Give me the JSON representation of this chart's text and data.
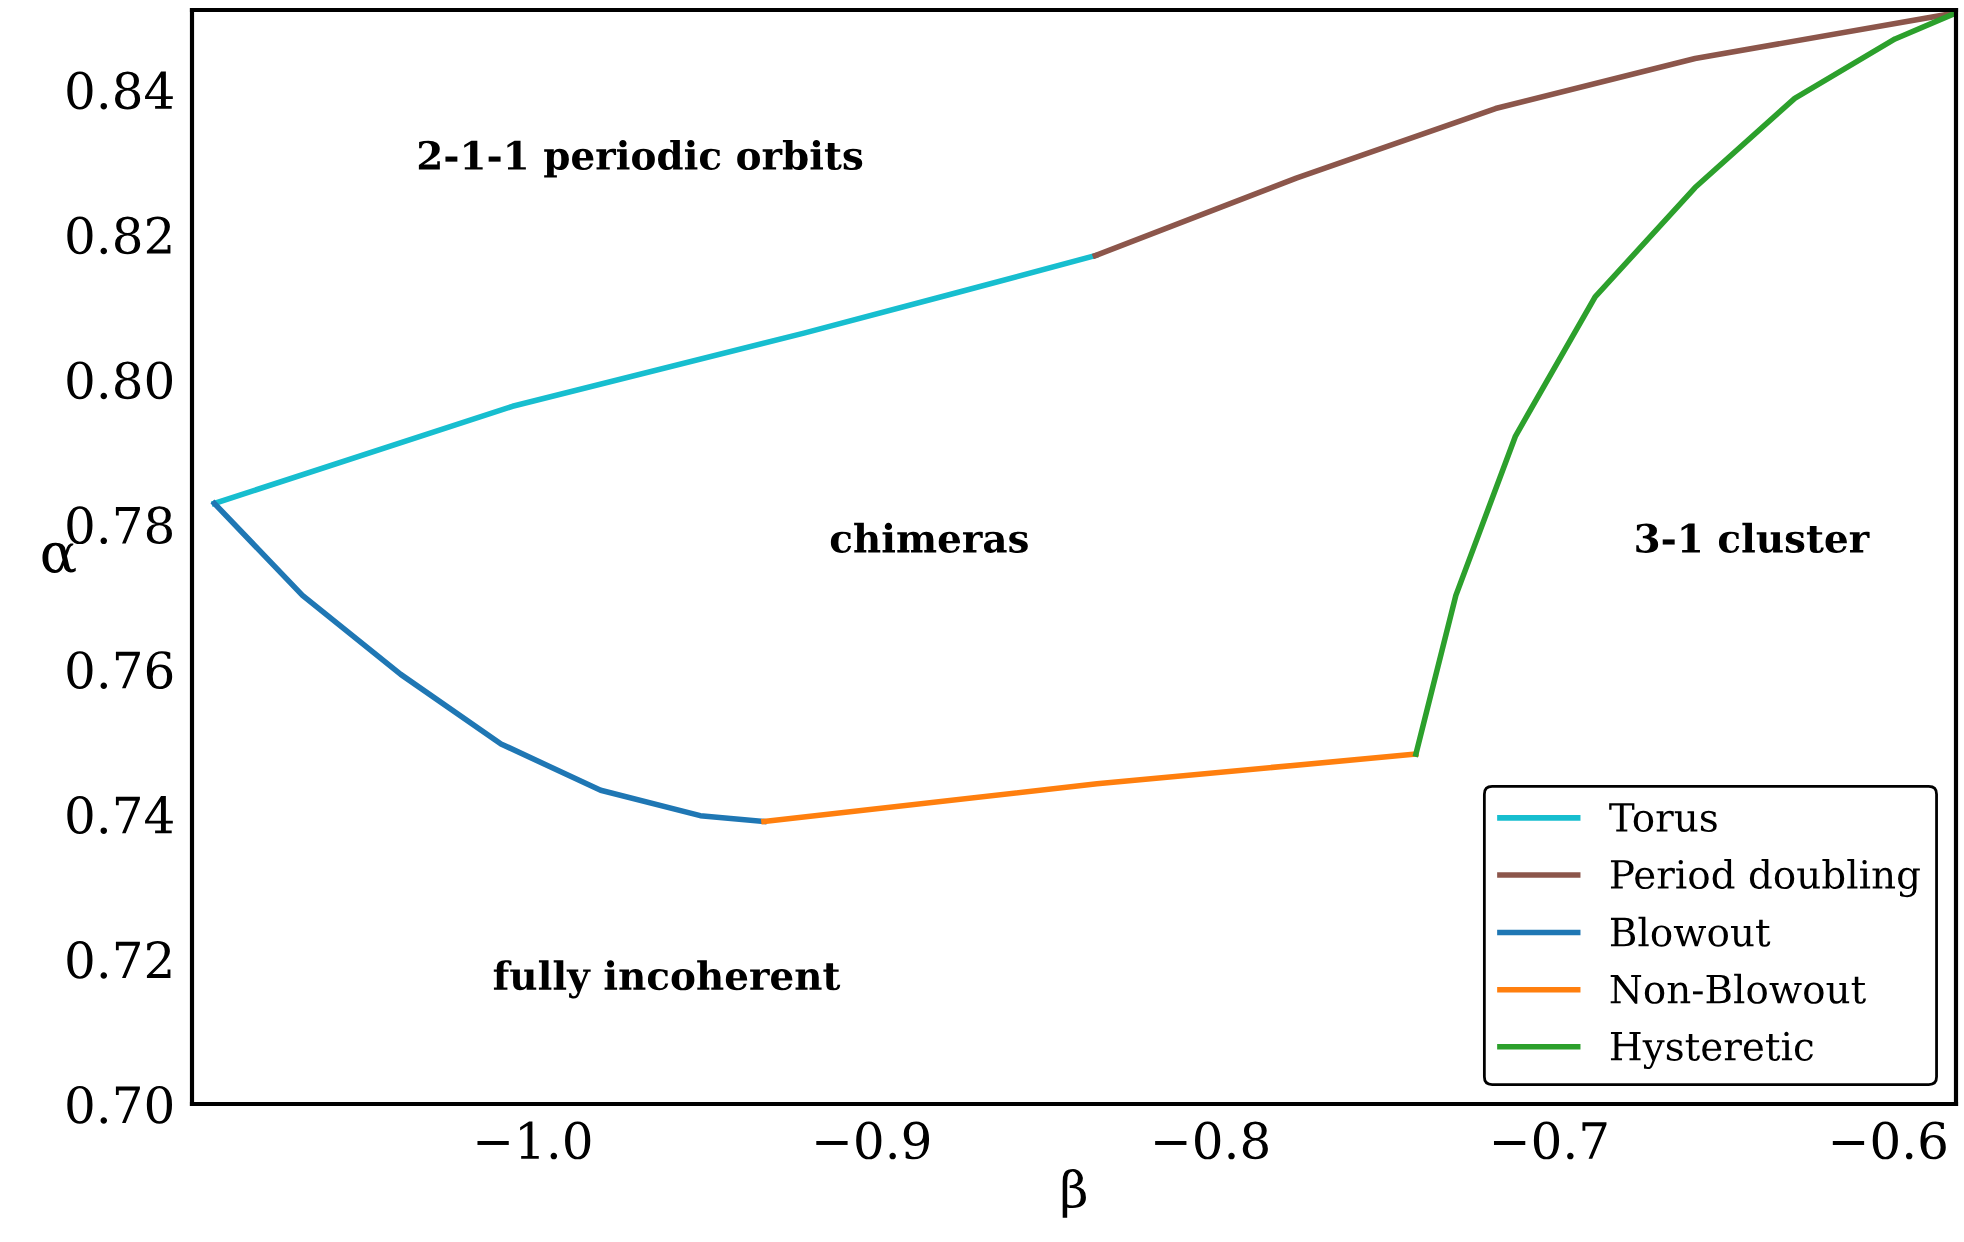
{
  "chart_data": {
    "type": "line",
    "xlabel": "β",
    "ylabel": "α",
    "xlim": [
      -1.1006,
      -0.58
    ],
    "ylim": [
      0.7,
      0.851
    ],
    "xticks": [
      {
        "value": -1.0,
        "label": "−1.0"
      },
      {
        "value": -0.9,
        "label": "−0.9"
      },
      {
        "value": -0.8,
        "label": "−0.8"
      },
      {
        "value": -0.7,
        "label": "−0.7"
      },
      {
        "value": -0.6,
        "label": "−0.6"
      }
    ],
    "yticks": [
      {
        "value": 0.7,
        "label": "0.70"
      },
      {
        "value": 0.72,
        "label": "0.72"
      },
      {
        "value": 0.74,
        "label": "0.74"
      },
      {
        "value": 0.76,
        "label": "0.76"
      },
      {
        "value": 0.78,
        "label": "0.78"
      },
      {
        "value": 0.8,
        "label": "0.80"
      },
      {
        "value": 0.82,
        "label": "0.82"
      },
      {
        "value": 0.84,
        "label": "0.84"
      }
    ],
    "grid": false,
    "legend": "bottom right",
    "marker": "none",
    "line_style": "solid",
    "series": [
      {
        "name": "Torus",
        "color": "#17becf",
        "x": [
          -1.094,
          -1.006,
          -0.92,
          -0.8747,
          -0.834
        ],
        "values": [
          0.7829,
          0.7963,
          0.8064,
          0.812,
          0.8171
        ]
      },
      {
        "name": "Period doubling",
        "color": "#8c564b",
        "x": [
          -0.834,
          -0.7747,
          -0.7159,
          -0.657,
          -0.58
        ],
        "values": [
          0.8171,
          0.8278,
          0.8374,
          0.8443,
          0.8506
        ]
      },
      {
        "name": "Blowout",
        "color": "#1f77b4",
        "x": [
          -1.094,
          -1.068,
          -1.039,
          -1.0094,
          -0.98,
          -0.9506,
          -0.9318
        ],
        "values": [
          0.7829,
          0.7702,
          0.7593,
          0.7497,
          0.7433,
          0.7398,
          0.739
        ]
      },
      {
        "name": "Non-Blowout",
        "color": "#ff7f0e",
        "x": [
          -0.9318,
          -0.8335,
          -0.7394
        ],
        "values": [
          0.739,
          0.7442,
          0.7483
        ]
      },
      {
        "name": "Hysteretic",
        "color": "#2ca02c",
        "x": [
          -0.7394,
          -0.7276,
          -0.71,
          -0.6865,
          -0.657,
          -0.6276,
          -0.598,
          -0.58
        ],
        "values": [
          0.7483,
          0.7702,
          0.7922,
          0.8114,
          0.8265,
          0.8388,
          0.847,
          0.8506
        ]
      }
    ],
    "annotations": [
      "2-1-1 periodic orbits",
      "chimeras",
      "3-1 cluster",
      "fully incoherent"
    ]
  }
}
